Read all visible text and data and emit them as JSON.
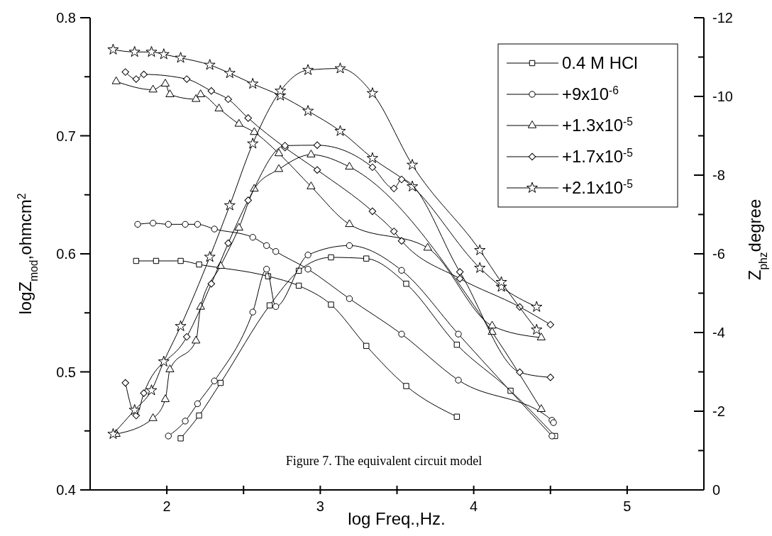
{
  "chart_data": {
    "type": "line",
    "xlabel": "log Freq.,Hz.",
    "ylabel": "logZ$_{mod}$,ohmcm$^{2}$",
    "y2label": "Z$_{phz}$degree",
    "xlim": [
      1.5,
      5.5
    ],
    "xticks": [
      2,
      {
        "value": 2.5,
        "label": null
      },
      3,
      {
        "value": 3.5,
        "label": null
      },
      4,
      {
        "value": 4.5,
        "label": null
      },
      5
    ],
    "ylim": [
      0.4,
      0.8
    ],
    "yticks": [
      0.4,
      {
        "value": 0.45,
        "label": null
      },
      0.5,
      {
        "value": 0.55,
        "label": null
      },
      0.6,
      {
        "value": 0.65,
        "label": null
      },
      0.7,
      {
        "value": 0.75,
        "label": null
      },
      0.8
    ],
    "y2lim": [
      0,
      -12
    ],
    "y2ticks": [
      0,
      {
        "value": -1,
        "label": null
      },
      -2,
      {
        "value": -3,
        "label": null
      },
      -4,
      {
        "value": -5,
        "label": null
      },
      -6,
      {
        "value": -7,
        "label": null
      },
      -8,
      {
        "value": -9,
        "label": null
      },
      -10,
      {
        "value": -11,
        "label": null
      },
      -12
    ],
    "legend": "top right",
    "line_style": "solid",
    "annotations": [
      "Figure 7. The equivalent circuit model"
    ],
    "series": [
      {
        "name": "0.4 M HCl",
        "color": "#000000",
        "marker": "square",
        "x": [
          1.8,
          1.93,
          2.09,
          2.21,
          2.66,
          2.86,
          3.07,
          3.3,
          3.56,
          3.89
        ],
        "values": [
          0.594,
          0.594,
          0.594,
          0.591,
          0.581,
          0.573,
          0.557,
          0.522,
          0.488,
          0.462
        ]
      },
      {
        "name": "+9x10$^{-6}$",
        "color": "#000000",
        "marker": "circle",
        "x": [
          1.81,
          1.91,
          2.01,
          2.12,
          2.2,
          2.31,
          2.56,
          2.65,
          2.71,
          2.92,
          3.19,
          3.53,
          3.9,
          4.51,
          4.52
        ],
        "values": [
          0.625,
          0.626,
          0.625,
          0.625,
          0.625,
          0.621,
          0.614,
          0.607,
          0.602,
          0.587,
          0.562,
          0.532,
          0.493,
          0.459,
          0.457
        ]
      },
      {
        "name": "+1.3x10$^{-5}$",
        "color": "#000000",
        "marker": "triangle",
        "x": [
          1.67,
          1.91,
          1.99,
          2.02,
          2.19,
          2.22,
          2.34,
          2.47,
          2.57,
          2.73,
          2.94,
          3.19,
          3.7,
          4.12,
          4.44
        ],
        "values": [
          0.746,
          0.739,
          0.744,
          0.735,
          0.731,
          0.735,
          0.723,
          0.71,
          0.703,
          0.685,
          0.657,
          0.625,
          0.605,
          0.539,
          0.529
        ]
      },
      {
        "name": "+1.7x10$^{-5}$",
        "color": "#000000",
        "marker": "diamond",
        "x": [
          1.73,
          1.8,
          1.85,
          2.13,
          2.29,
          2.4,
          2.53,
          2.77,
          2.98,
          3.34,
          3.48,
          3.53,
          3.91,
          4.3,
          4.5
        ],
        "values": [
          0.754,
          0.748,
          0.752,
          0.748,
          0.738,
          0.731,
          0.715,
          0.69,
          0.671,
          0.636,
          0.619,
          0.611,
          0.579,
          0.555,
          0.54
        ]
      },
      {
        "name": "+2.1x10$^{-5}$",
        "color": "#000000",
        "marker": "star",
        "x": [
          1.65,
          1.79,
          1.9,
          1.98,
          2.09,
          2.28,
          2.41,
          2.56,
          2.74,
          2.92,
          3.13,
          3.34,
          3.6,
          4.04,
          4.18,
          4.41
        ],
        "values": [
          0.773,
          0.771,
          0.771,
          0.769,
          0.766,
          0.76,
          0.753,
          0.744,
          0.734,
          0.721,
          0.704,
          0.681,
          0.657,
          0.588,
          0.572,
          0.555
        ]
      },
      {
        "color": "#000000",
        "marker": "square",
        "axis": "y2",
        "x": [
          2.09,
          2.21,
          2.35,
          2.67,
          2.86,
          3.07,
          3.3,
          3.56,
          3.89,
          4.24,
          4.53
        ],
        "values": [
          -1.31,
          -1.89,
          -2.72,
          -4.69,
          -5.57,
          -5.91,
          -5.88,
          -5.24,
          -3.69,
          -2.52,
          -1.37
        ]
      },
      {
        "color": "#000000",
        "marker": "circle",
        "axis": "y2",
        "x": [
          2.01,
          2.12,
          2.2,
          2.31,
          2.56,
          2.65,
          2.71,
          2.92,
          3.19,
          3.53,
          3.9,
          4.51
        ],
        "values": [
          -1.37,
          -1.75,
          -2.19,
          -2.77,
          -4.52,
          -5.61,
          -4.66,
          -5.97,
          -6.21,
          -5.58,
          -3.96,
          -1.37
        ]
      },
      {
        "color": "#000000",
        "marker": "triangle",
        "axis": "y2",
        "x": [
          1.67,
          1.91,
          1.99,
          2.02,
          2.19,
          2.22,
          2.35,
          2.47,
          2.57,
          2.73,
          2.94,
          3.19,
          4.12,
          4.44
        ],
        "values": [
          -1.42,
          -1.82,
          -2.3,
          -3.06,
          -3.79,
          -4.65,
          -5.69,
          -6.66,
          -7.65,
          -8.15,
          -8.52,
          -8.21,
          -4.01,
          -2.05
        ]
      },
      {
        "color": "#000000",
        "marker": "diamond",
        "axis": "y2",
        "x": [
          1.73,
          1.8,
          1.85,
          2.13,
          2.29,
          2.4,
          2.53,
          2.77,
          2.98,
          3.34,
          3.48,
          3.53,
          3.91,
          4.3,
          4.5
        ],
        "values": [
          -2.72,
          -1.89,
          -2.46,
          -3.89,
          -5.24,
          -6.27,
          -7.36,
          -8.75,
          -8.76,
          -8.2,
          -7.66,
          -7.89,
          -5.54,
          -2.99,
          -2.86
        ]
      },
      {
        "color": "#000000",
        "marker": "star",
        "axis": "y2",
        "x": [
          1.65,
          1.79,
          1.9,
          1.98,
          2.09,
          2.28,
          2.41,
          2.56,
          2.74,
          2.92,
          3.13,
          3.34,
          3.6,
          4.04,
          4.18,
          4.41
        ],
        "values": [
          -1.42,
          -2.03,
          -2.53,
          -3.26,
          -4.16,
          -5.92,
          -7.23,
          -8.8,
          -10.14,
          -10.67,
          -10.71,
          -10.08,
          -8.26,
          -6.09,
          -5.28,
          -4.07
        ]
      }
    ]
  }
}
